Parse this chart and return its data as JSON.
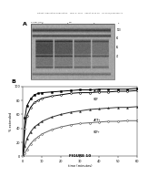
{
  "header_text": "Patent Application Publication    May 3, 2007   Sheet 10 of 16   US 2007/0100136 A1",
  "panel_a_label": "A",
  "panel_b_label": "B",
  "figure_label": "FIGURE 10",
  "background_color": "#ffffff",
  "curve1_x": [
    0,
    1,
    2,
    4,
    6,
    8,
    10,
    15,
    20,
    25,
    30,
    35,
    40,
    45,
    50,
    55,
    60
  ],
  "curve1_y": [
    0,
    55,
    72,
    82,
    88,
    90,
    91,
    92,
    93,
    94,
    95,
    95,
    96,
    96,
    96,
    96,
    97
  ],
  "curve2_x": [
    0,
    1,
    2,
    4,
    6,
    8,
    10,
    15,
    20,
    25,
    30,
    35,
    40,
    45,
    50,
    55,
    60
  ],
  "curve2_y": [
    0,
    40,
    58,
    70,
    77,
    80,
    83,
    86,
    88,
    90,
    91,
    91,
    92,
    92,
    93,
    93,
    94
  ],
  "curve3_x": [
    0,
    1,
    2,
    4,
    6,
    8,
    10,
    15,
    20,
    25,
    30,
    35,
    40,
    45,
    50,
    55,
    60
  ],
  "curve3_y": [
    0,
    15,
    25,
    35,
    42,
    46,
    50,
    56,
    60,
    63,
    65,
    67,
    68,
    69,
    70,
    70,
    71
  ],
  "curve4_x": [
    0,
    1,
    2,
    4,
    6,
    8,
    10,
    15,
    20,
    25,
    30,
    35,
    40,
    45,
    50,
    55,
    60
  ],
  "curve4_y": [
    0,
    5,
    10,
    18,
    24,
    28,
    32,
    38,
    42,
    45,
    47,
    48,
    49,
    50,
    50,
    51,
    51
  ],
  "xlabel": "time (minutes)",
  "ylabel": "% extended",
  "xlim": [
    0,
    60
  ],
  "ylim": [
    0,
    100
  ],
  "yticks": [
    0,
    20,
    40,
    60,
    80,
    100
  ],
  "xticks": [
    0,
    10,
    20,
    30,
    40,
    50,
    60
  ]
}
